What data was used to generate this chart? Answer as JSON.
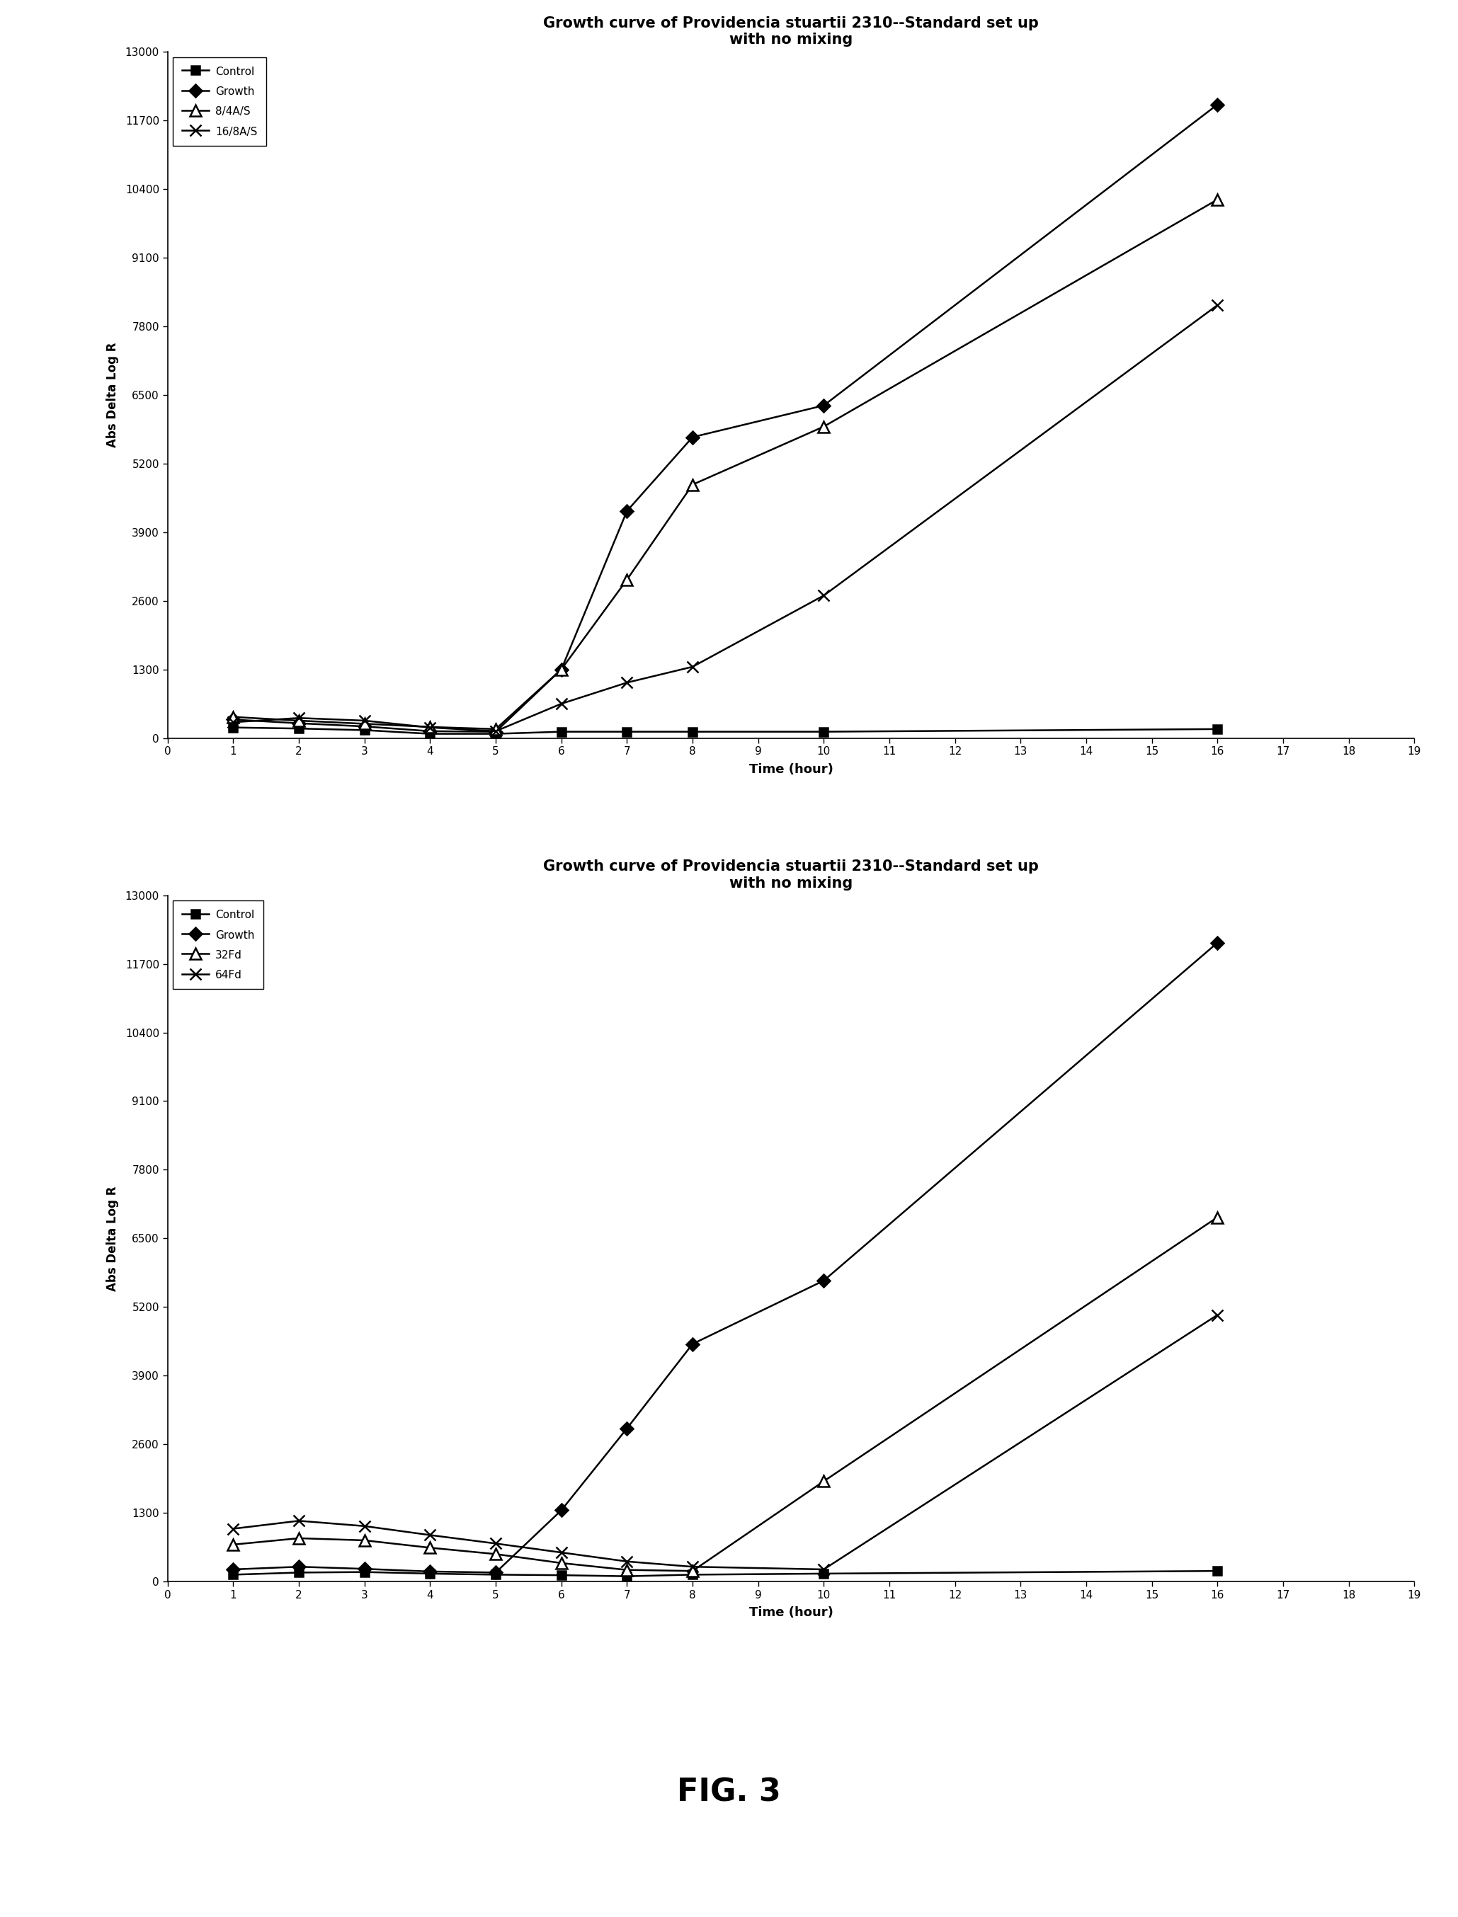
{
  "chart1": {
    "title": "Growth curve of Providencia stuartii 2310--Standard set up\nwith no mixing",
    "xlabel": "Time (hour)",
    "ylabel": "Abs Delta Log R",
    "yticks": [
      0,
      1300,
      2600,
      3900,
      5200,
      6500,
      7800,
      9100,
      10400,
      11700,
      13000
    ],
    "xticks": [
      0,
      1,
      2,
      3,
      4,
      5,
      6,
      7,
      8,
      9,
      10,
      11,
      12,
      13,
      14,
      15,
      16,
      17,
      18,
      19
    ],
    "xlim": [
      0,
      19
    ],
    "ylim": [
      0,
      13000
    ],
    "series": [
      {
        "label": "Control",
        "marker": "s",
        "x": [
          1,
          2,
          3,
          4,
          5,
          6,
          7,
          8,
          10,
          16
        ],
        "y": [
          200,
          180,
          150,
          80,
          80,
          120,
          120,
          120,
          120,
          170
        ]
      },
      {
        "label": "Growth",
        "marker": "D",
        "x": [
          1,
          2,
          3,
          4,
          5,
          6,
          7,
          8,
          10,
          16
        ],
        "y": [
          350,
          280,
          220,
          130,
          120,
          1300,
          4300,
          5700,
          6300,
          12000
        ]
      },
      {
        "label": "8/4A/S",
        "marker": "^",
        "x": [
          1,
          2,
          3,
          4,
          5,
          6,
          7,
          8,
          10,
          16
        ],
        "y": [
          400,
          330,
          270,
          210,
          170,
          1300,
          3000,
          4800,
          5900,
          10200
        ]
      },
      {
        "label": "16/8A/S",
        "marker": "x",
        "x": [
          1,
          2,
          3,
          4,
          5,
          6,
          7,
          8,
          10,
          16
        ],
        "y": [
          300,
          380,
          330,
          200,
          130,
          650,
          1050,
          1350,
          2700,
          8200
        ]
      }
    ]
  },
  "chart2": {
    "title": "Growth curve of Providencia stuartii 2310--Standard set up\nwith no mixing",
    "xlabel": "Time (hour)",
    "ylabel": "Abs Delta Log R",
    "yticks": [
      0,
      1300,
      2600,
      3900,
      5200,
      6500,
      7800,
      9100,
      10400,
      11700,
      13000
    ],
    "xticks": [
      0,
      1,
      2,
      3,
      4,
      5,
      6,
      7,
      8,
      9,
      10,
      11,
      12,
      13,
      14,
      15,
      16,
      17,
      18,
      19
    ],
    "xlim": [
      0,
      19
    ],
    "ylim": [
      0,
      13000
    ],
    "series": [
      {
        "label": "Control",
        "marker": "s",
        "x": [
          1,
          2,
          3,
          4,
          5,
          6,
          7,
          8,
          10,
          16
        ],
        "y": [
          130,
          170,
          180,
          150,
          130,
          120,
          100,
          130,
          150,
          200
        ]
      },
      {
        "label": "Growth",
        "marker": "D",
        "x": [
          1,
          2,
          3,
          4,
          5,
          6,
          7,
          8,
          10,
          16
        ],
        "y": [
          230,
          280,
          240,
          190,
          170,
          1350,
          2900,
          4500,
          5700,
          12100
        ]
      },
      {
        "label": "32Fd",
        "marker": "^",
        "x": [
          1,
          2,
          3,
          4,
          5,
          6,
          7,
          8,
          10,
          16
        ],
        "y": [
          700,
          820,
          780,
          640,
          520,
          350,
          220,
          200,
          1900,
          6900
        ]
      },
      {
        "label": "64Fd",
        "marker": "x",
        "x": [
          1,
          2,
          3,
          4,
          5,
          6,
          7,
          8,
          10,
          16
        ],
        "y": [
          1000,
          1150,
          1050,
          880,
          720,
          550,
          380,
          280,
          230,
          5050
        ]
      }
    ]
  },
  "fig_label": "FIG. 3",
  "background_color": "#ffffff",
  "line_color": "#000000"
}
